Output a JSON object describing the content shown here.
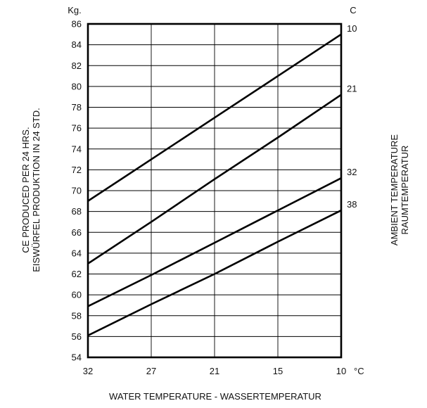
{
  "chart_data": {
    "type": "line",
    "x_unit": "°C",
    "y_unit": "Kg.",
    "right_unit": "C",
    "x": [
      32,
      27,
      21,
      15,
      10
    ],
    "x_ticks": [
      "32",
      "27",
      "21",
      "15",
      "10"
    ],
    "y_ticks": [
      "54",
      "56",
      "58",
      "60",
      "62",
      "64",
      "66",
      "68",
      "70",
      "72",
      "74",
      "76",
      "78",
      "80",
      "82",
      "84",
      "86"
    ],
    "xlim": [
      32,
      10
    ],
    "ylim": [
      54,
      86
    ],
    "grid": true,
    "xlabel": "WATER TEMPERATURE - WASSERTEMPERATUR",
    "ylabel_lines": [
      "CE PRODUCED PER 24 HRS.",
      "EISWÜRFEL PRODUKTION IN 24 STD."
    ],
    "right_label_lines": [
      "AMBIENT TEMPERATURE",
      "RAUMTEMPERATUR"
    ],
    "series": [
      {
        "name": "10",
        "values": [
          69.0,
          73.0,
          77.0,
          81.0,
          85.0
        ]
      },
      {
        "name": "21",
        "values": [
          63.0,
          67.0,
          71.1,
          75.1,
          79.2
        ]
      },
      {
        "name": "32",
        "values": [
          58.9,
          61.9,
          65.0,
          68.1,
          71.2
        ]
      },
      {
        "name": "38",
        "values": [
          56.1,
          59.1,
          62.0,
          65.1,
          68.1
        ]
      }
    ]
  }
}
